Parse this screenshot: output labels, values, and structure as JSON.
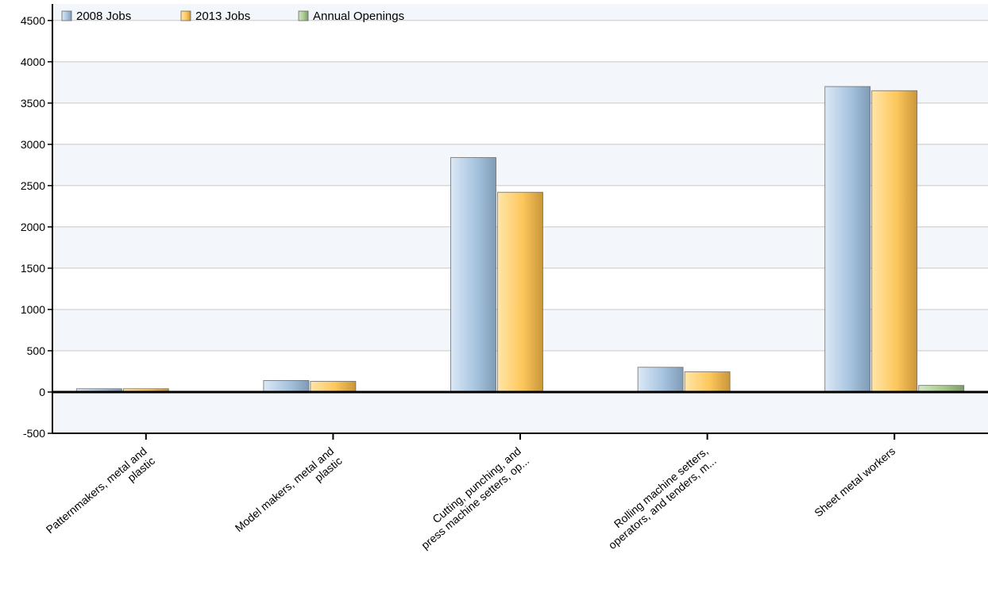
{
  "chart_data": {
    "type": "bar",
    "categories": [
      [
        "Patternmakers, metal and",
        "plastic"
      ],
      [
        "Model makers, metal and",
        "plastic"
      ],
      [
        "Cutting, punching, and",
        "press machine setters, op..."
      ],
      [
        "Rolling machine setters,",
        "operators, and tenders, m..."
      ],
      [
        "Sheet metal workers"
      ]
    ],
    "series": [
      {
        "name": "2008 Jobs",
        "color": "#a7c4e0",
        "values": [
          40,
          140,
          2840,
          300,
          3700
        ]
      },
      {
        "name": "2013 Jobs",
        "color": "#fdc75c",
        "values": [
          40,
          130,
          2420,
          245,
          3650
        ]
      },
      {
        "name": "Annual Openings",
        "color": "#a9c98f",
        "values": [
          0,
          0,
          0,
          0,
          80
        ]
      }
    ],
    "ylim": [
      -500,
      4700
    ],
    "yticks": [
      -500,
      0,
      500,
      1000,
      1500,
      2000,
      2500,
      3000,
      3500,
      4000,
      4500
    ],
    "legend_position": "top-left",
    "grid": true
  }
}
